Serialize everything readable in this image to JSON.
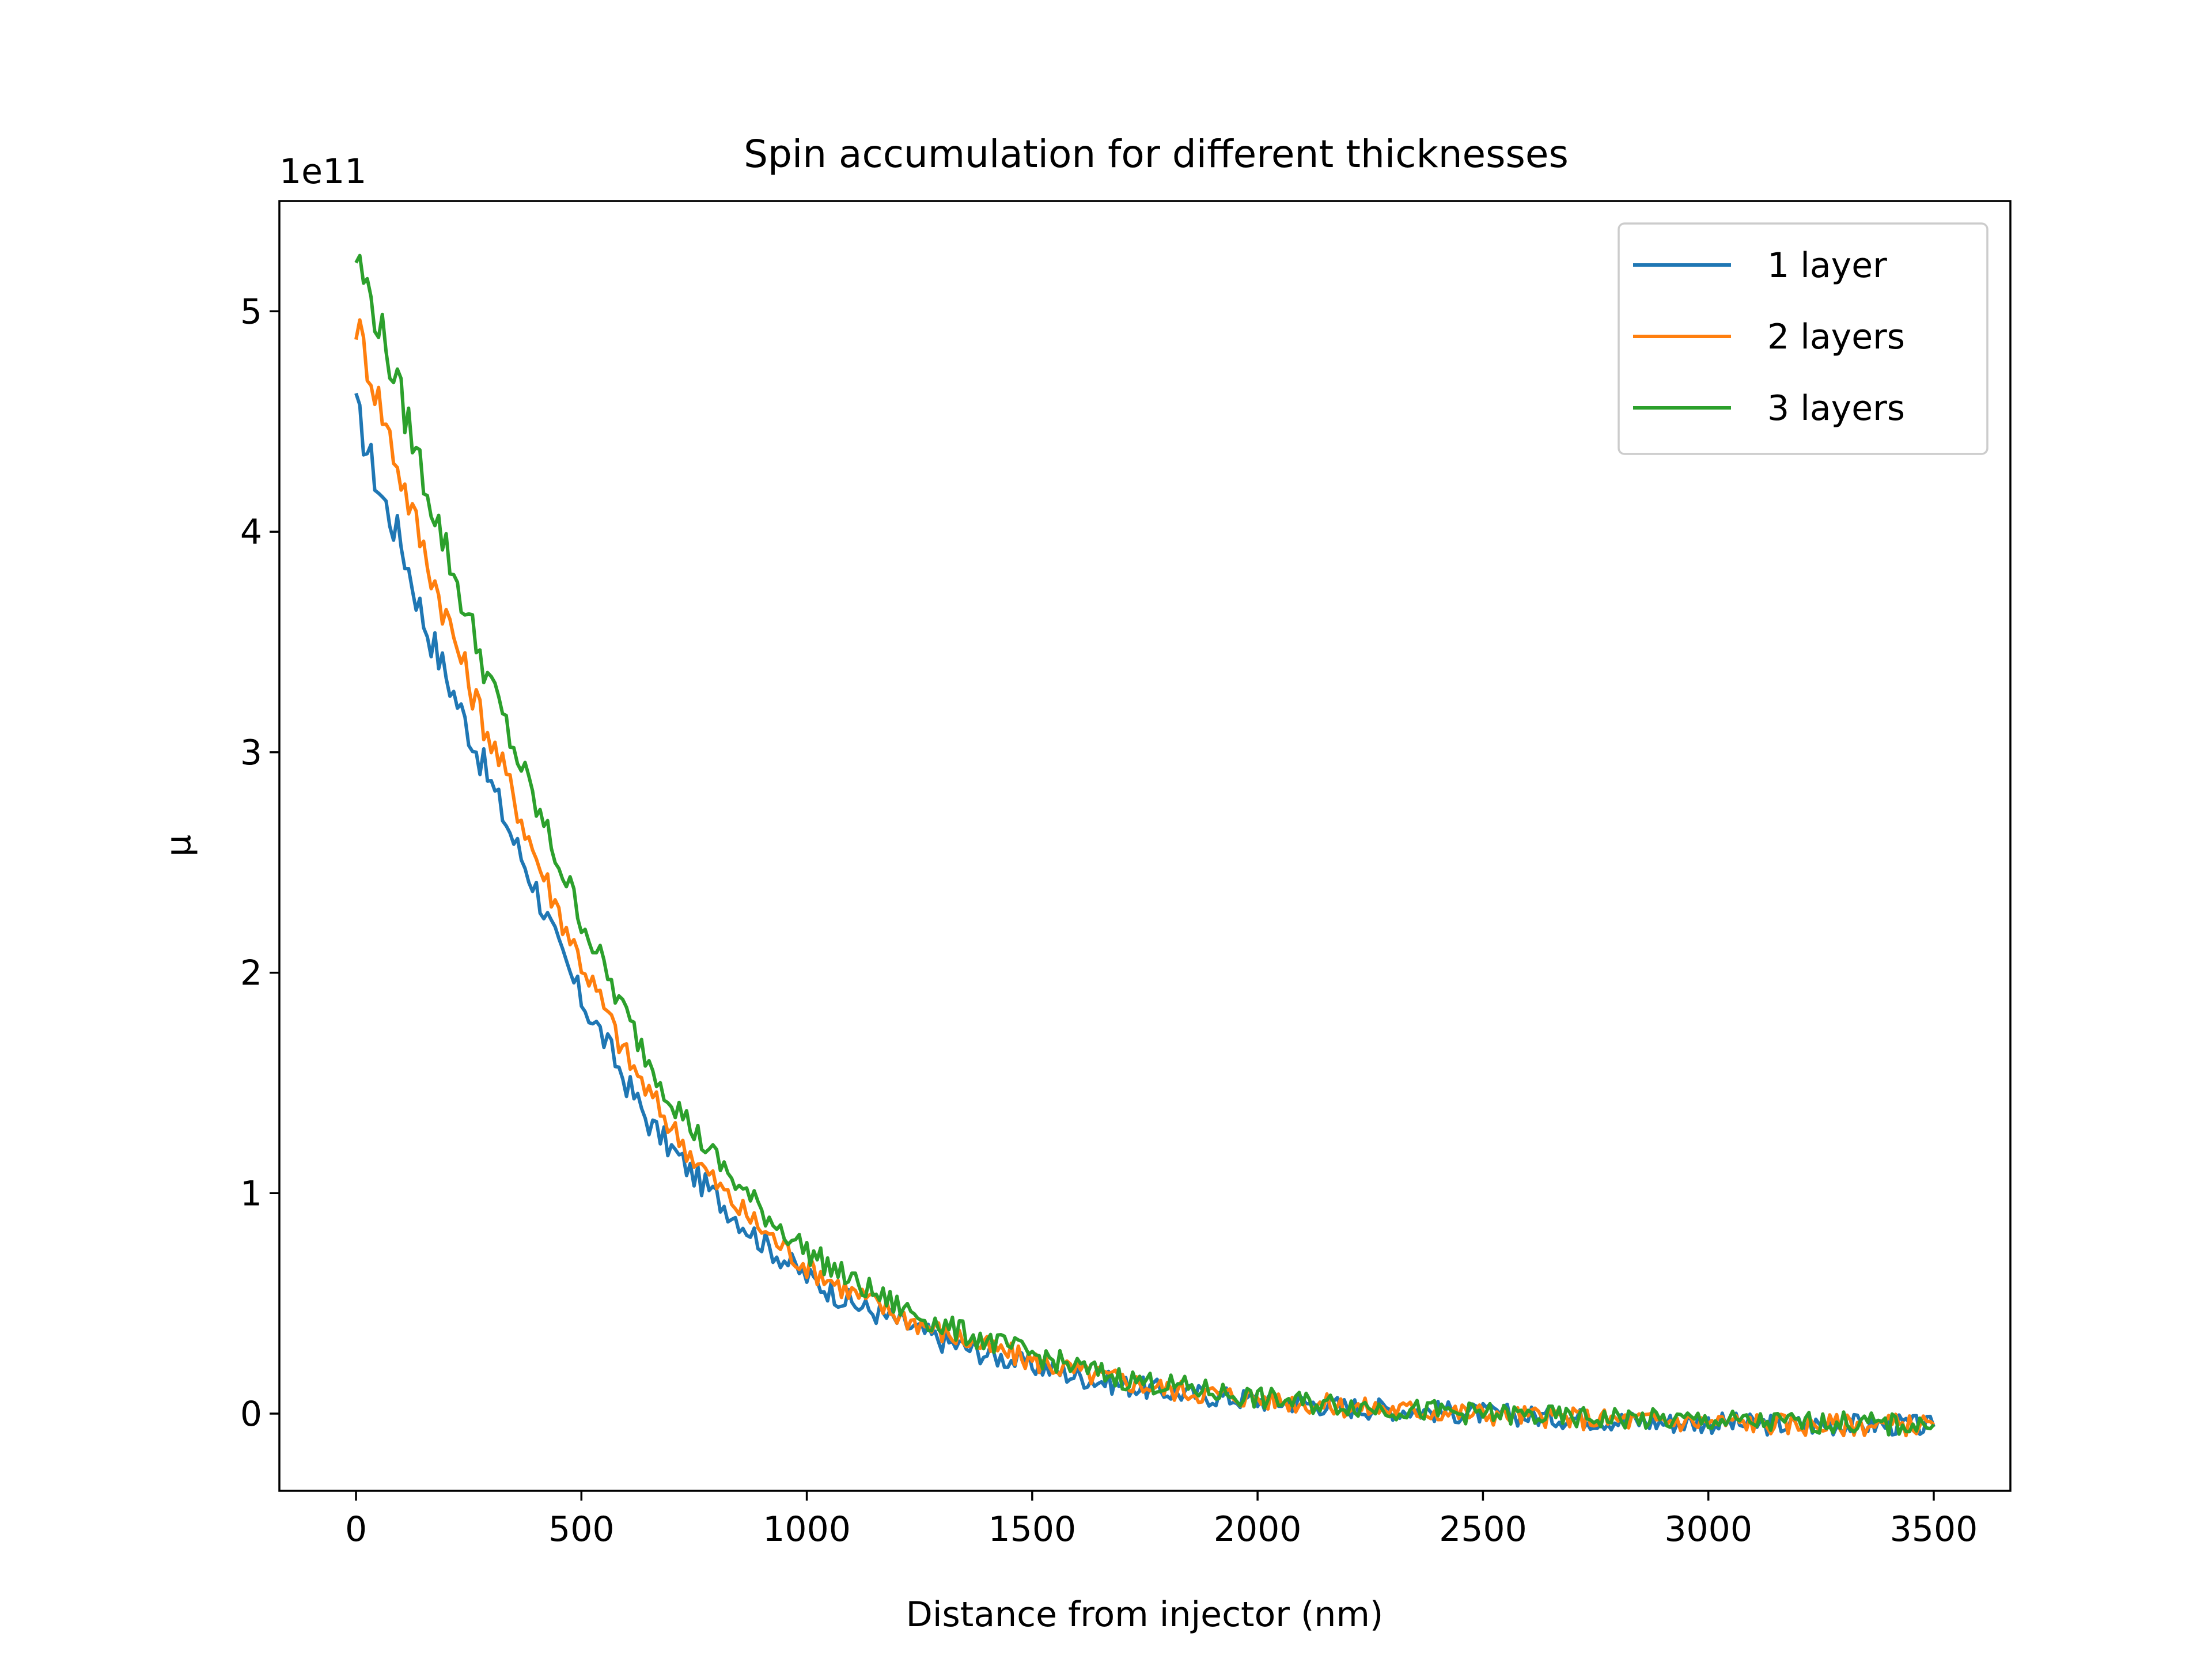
{
  "chart_data": {
    "type": "line",
    "title": "Spin accumulation for different thicknesses",
    "xlabel": "Distance from injector (nm)",
    "ylabel": "μ",
    "y_offset_label": "1e11",
    "xlim": [
      -170,
      3670
    ],
    "ylim": [
      -0.35,
      5.5
    ],
    "y_scale_factor": 100000000000,
    "x_ticks": [
      0,
      500,
      1000,
      1500,
      2000,
      2500,
      3000,
      3500
    ],
    "x_tick_labels": [
      "0",
      "500",
      "1000",
      "1500",
      "2000",
      "2500",
      "3000",
      "3500"
    ],
    "y_ticks": [
      0,
      1,
      2,
      3,
      4,
      5
    ],
    "y_tick_labels": [
      "0",
      "1",
      "2",
      "3",
      "4",
      "5"
    ],
    "grid": false,
    "legend_position": "top-right",
    "x": [
      0,
      50,
      100,
      150,
      200,
      250,
      300,
      350,
      400,
      450,
      500,
      550,
      600,
      650,
      700,
      750,
      800,
      850,
      900,
      950,
      1000,
      1100,
      1200,
      1300,
      1400,
      1500,
      1600,
      1700,
      1800,
      1900,
      2000,
      2100,
      2200,
      2300,
      2400,
      2500,
      2600,
      2700,
      2800,
      2900,
      3000,
      3100,
      3200,
      3300,
      3400,
      3500
    ],
    "series": [
      {
        "name": "1 layer",
        "color": "#1f77b4",
        "values": [
          4.55,
          4.2,
          3.95,
          3.6,
          3.35,
          3.1,
          2.85,
          2.6,
          2.38,
          2.1,
          1.88,
          1.7,
          1.5,
          1.32,
          1.2,
          1.08,
          0.98,
          0.88,
          0.78,
          0.7,
          0.62,
          0.5,
          0.42,
          0.33,
          0.27,
          0.22,
          0.17,
          0.13,
          0.1,
          0.08,
          0.06,
          0.05,
          0.03,
          0.02,
          0.01,
          0.0,
          -0.01,
          -0.02,
          -0.03,
          -0.04,
          -0.04,
          -0.05,
          -0.05,
          -0.05,
          -0.05,
          -0.06
        ]
      },
      {
        "name": "2 layers",
        "color": "#ff7f0e",
        "values": [
          4.95,
          4.6,
          4.25,
          3.92,
          3.62,
          3.32,
          3.05,
          2.8,
          2.52,
          2.28,
          2.05,
          1.84,
          1.62,
          1.45,
          1.3,
          1.16,
          1.04,
          0.93,
          0.84,
          0.75,
          0.67,
          0.55,
          0.45,
          0.37,
          0.3,
          0.24,
          0.19,
          0.15,
          0.11,
          0.09,
          0.07,
          0.05,
          0.03,
          0.02,
          0.01,
          0.0,
          -0.01,
          -0.02,
          -0.03,
          -0.03,
          -0.04,
          -0.04,
          -0.05,
          -0.05,
          -0.05,
          -0.05
        ]
      },
      {
        "name": "3 layers",
        "color": "#2ca02c",
        "values": [
          5.25,
          4.95,
          4.6,
          4.25,
          3.92,
          3.6,
          3.3,
          3.02,
          2.75,
          2.5,
          2.25,
          2.02,
          1.8,
          1.6,
          1.43,
          1.28,
          1.15,
          1.03,
          0.92,
          0.83,
          0.74,
          0.6,
          0.49,
          0.4,
          0.33,
          0.27,
          0.21,
          0.16,
          0.13,
          0.1,
          0.07,
          0.05,
          0.04,
          0.02,
          0.01,
          0.0,
          -0.01,
          -0.02,
          -0.02,
          -0.03,
          -0.03,
          -0.04,
          -0.04,
          -0.04,
          -0.05,
          -0.05
        ]
      }
    ]
  }
}
